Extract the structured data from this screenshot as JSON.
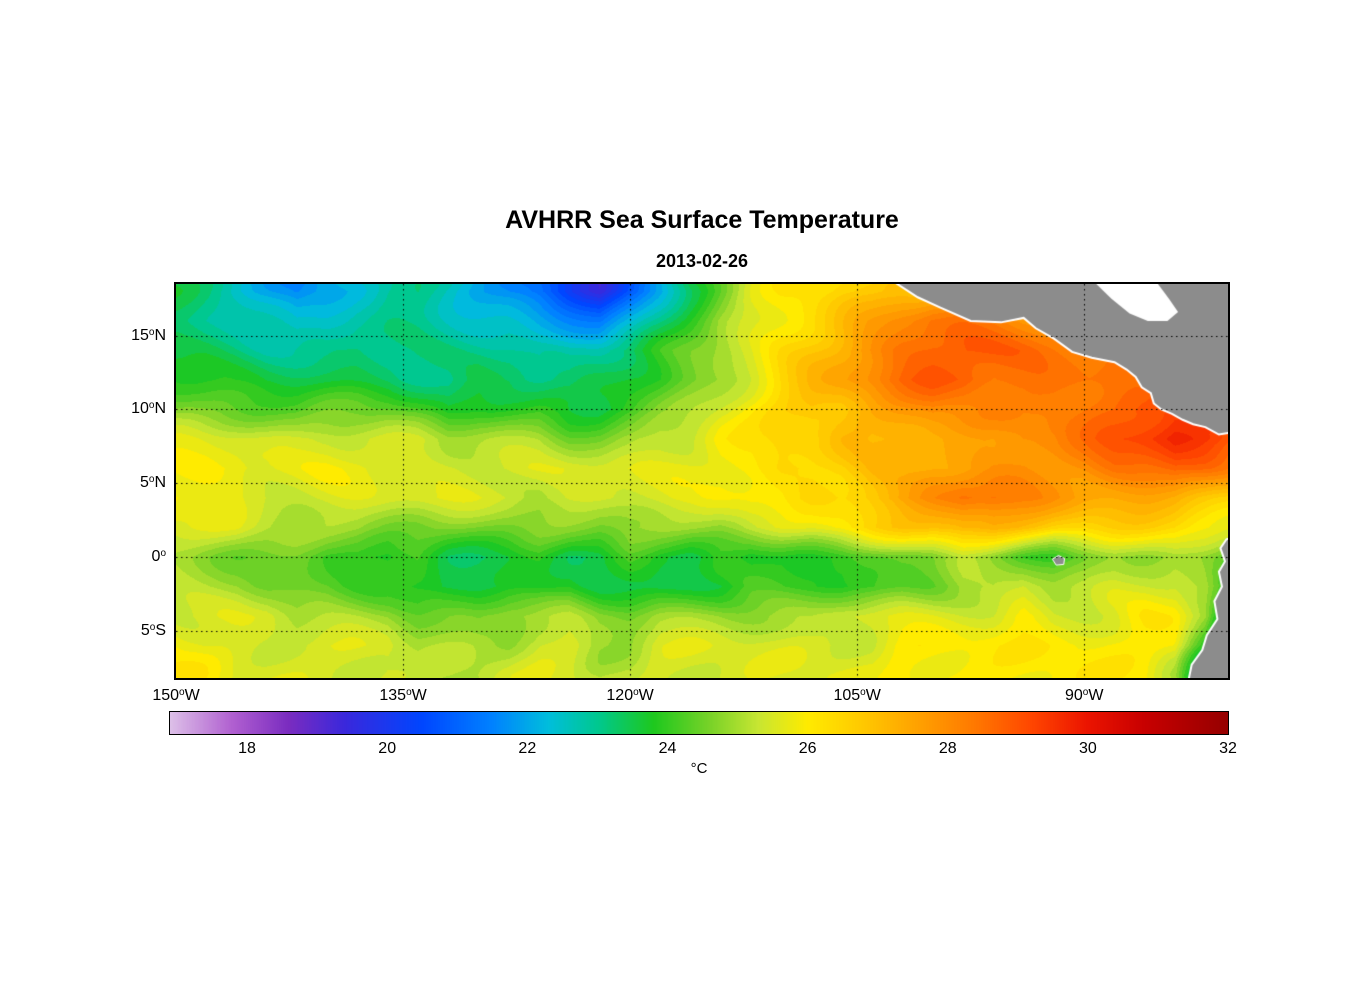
{
  "title": "AVHRR Sea Surface Temperature",
  "subtitle": "2013-02-26",
  "axes": {
    "lon_range": [
      -150,
      -80.5
    ],
    "lat_range": [
      -8.2,
      18.5
    ],
    "xticks": [
      {
        "num": "150",
        "dir": "W",
        "lon": -150
      },
      {
        "num": "135",
        "dir": "W",
        "lon": -135
      },
      {
        "num": "120",
        "dir": "W",
        "lon": -120
      },
      {
        "num": "105",
        "dir": "W",
        "lon": -105
      },
      {
        "num": "90",
        "dir": "W",
        "lon": -90
      }
    ],
    "yticks": [
      {
        "num": "15",
        "dir": "N",
        "lat": 15
      },
      {
        "num": "10",
        "dir": "N",
        "lat": 10
      },
      {
        "num": "5",
        "dir": "N",
        "lat": 5
      },
      {
        "num": "0",
        "dir": "",
        "lat": 0
      },
      {
        "num": "5",
        "dir": "S",
        "lat": -5
      }
    ],
    "grid_lons": [
      -135,
      -120,
      -105,
      -90
    ],
    "grid_lats": [
      15,
      10,
      5,
      0,
      -5
    ]
  },
  "colorbar": {
    "unit": "°C",
    "ticks": [
      18,
      20,
      22,
      24,
      26,
      28,
      30,
      32
    ],
    "range": [
      16.9,
      32
    ],
    "stops": [
      [
        16.9,
        "#ddc0e8"
      ],
      [
        17.8,
        "#b05fd0"
      ],
      [
        18.6,
        "#7a2cc0"
      ],
      [
        19.4,
        "#3a28dc"
      ],
      [
        20.5,
        "#0046ff"
      ],
      [
        21.5,
        "#0082ff"
      ],
      [
        22.3,
        "#00bedc"
      ],
      [
        23.0,
        "#00c890"
      ],
      [
        23.8,
        "#1ec81e"
      ],
      [
        24.6,
        "#78d228"
      ],
      [
        25.3,
        "#c8e632"
      ],
      [
        26.0,
        "#ffeb00"
      ],
      [
        26.8,
        "#ffc800"
      ],
      [
        27.6,
        "#ffa000"
      ],
      [
        28.4,
        "#ff7800"
      ],
      [
        29.2,
        "#ff4600"
      ],
      [
        30.0,
        "#eb1400"
      ],
      [
        30.8,
        "#c80000"
      ],
      [
        32.0,
        "#960000"
      ]
    ]
  },
  "chart_data": {
    "type": "heatmap",
    "title": "AVHRR Sea Surface Temperature",
    "subtitle": "2013-02-26",
    "units": "°C",
    "value_range": [
      16.9,
      32
    ],
    "colorbar_ticks": [
      18,
      20,
      22,
      24,
      26,
      28,
      30,
      32
    ],
    "lon": [
      -150,
      -148,
      -146,
      -144,
      -142,
      -140,
      -138,
      -136,
      -134,
      -132,
      -130,
      -128,
      -126,
      -124,
      -122,
      -120,
      -118,
      -116,
      -114,
      -112,
      -110,
      -108,
      -106,
      -104,
      -102,
      -100,
      -98,
      -96,
      -94,
      -92,
      -90,
      -88,
      -86,
      -84,
      -82,
      -80
    ],
    "lat": [
      18,
      16,
      14,
      12,
      10,
      8,
      6,
      4,
      2,
      0,
      -2,
      -4,
      -6,
      -8
    ],
    "sst": [
      [
        23.5,
        23,
        22.5,
        22,
        21.5,
        22,
        22.5,
        23,
        23,
        22.5,
        22,
        21.5,
        21,
        20.2,
        19.6,
        20.8,
        22,
        23.5,
        24.5,
        25.5,
        26,
        26.2,
        26.5,
        26.6,
        27,
        27.2,
        27.4,
        27.4,
        27.6,
        27.6,
        27.6,
        27.6,
        27.6,
        27.6,
        27.6,
        27.6
      ],
      [
        23.2,
        23,
        23,
        22.6,
        22.2,
        22.4,
        22.8,
        23,
        23,
        22.8,
        22.6,
        22.4,
        22,
        21.6,
        21.2,
        22,
        23,
        24,
        25,
        25.5,
        26,
        26.5,
        27,
        27.5,
        28,
        28.4,
        28.4,
        28.2,
        28,
        28,
        28,
        28,
        28,
        28,
        28,
        28
      ],
      [
        23.5,
        23.4,
        23.2,
        23,
        23,
        23,
        23.2,
        23,
        23,
        23,
        23,
        23,
        22.8,
        22.8,
        23,
        23.4,
        24,
        24.5,
        25,
        25.5,
        26.2,
        26.8,
        27.4,
        28,
        28.5,
        28.8,
        29,
        28.8,
        28.6,
        28.4,
        28.2,
        28.2,
        28.2,
        28,
        28,
        28
      ],
      [
        24,
        23.8,
        23.6,
        23.5,
        23.5,
        23.5,
        23.5,
        23.5,
        23.2,
        23,
        23.4,
        23.4,
        23,
        23,
        23.4,
        23.8,
        24,
        24.5,
        25,
        25.6,
        26.4,
        27,
        27.5,
        28,
        28.6,
        29,
        29,
        28.6,
        28.5,
        28.5,
        28.5,
        28.5,
        28.2,
        28.2,
        28.4,
        28.4
      ],
      [
        24.8,
        24.6,
        24.5,
        24.4,
        24.2,
        24.4,
        24.5,
        24.4,
        24,
        23.6,
        24,
        24,
        24,
        23.6,
        23.6,
        24,
        24.5,
        25,
        25.5,
        26,
        26.5,
        27,
        27,
        27.4,
        27.6,
        28,
        28,
        28,
        28,
        28.4,
        28.5,
        28.6,
        29,
        29.5,
        29.4,
        29
      ],
      [
        25.5,
        25.5,
        25.5,
        25.4,
        25.4,
        25.5,
        25.5,
        25.5,
        25.4,
        25,
        25,
        25,
        25,
        24.6,
        24.6,
        25,
        25.4,
        25.5,
        26,
        26,
        26.4,
        26.5,
        27,
        27,
        27.4,
        27.5,
        27.5,
        27.6,
        28,
        28,
        28.4,
        29,
        29.4,
        29.8,
        29.4,
        29
      ],
      [
        26,
        26,
        25.8,
        25.6,
        25.6,
        25.8,
        25.8,
        25.6,
        25.5,
        25.5,
        25.5,
        25.5,
        25.5,
        25.5,
        25.5,
        25.5,
        25.6,
        25.8,
        26,
        26,
        26.4,
        26.5,
        26.6,
        27,
        27,
        27.4,
        27.5,
        27.8,
        28,
        28,
        28,
        28.4,
        28.5,
        28.8,
        28.5,
        28
      ],
      [
        26,
        25.8,
        25.6,
        25.5,
        25.5,
        25.5,
        25.5,
        25.5,
        25.5,
        25.5,
        25.5,
        25.5,
        25.2,
        25.4,
        25.5,
        25.5,
        25.5,
        25.5,
        25.8,
        26,
        26,
        26.4,
        26.5,
        27,
        27.5,
        28,
        28.5,
        28.4,
        28,
        27.8,
        27.6,
        27.5,
        27.5,
        27.4,
        27,
        26.5
      ],
      [
        25.6,
        25.5,
        25.5,
        25.2,
        25,
        25,
        25,
        24.8,
        24.6,
        24.6,
        24.6,
        24.6,
        24.6,
        24.6,
        24.6,
        25,
        25,
        25,
        25,
        25.4,
        25.5,
        25.5,
        26,
        26.5,
        26.8,
        27,
        27.4,
        27.4,
        27,
        26.6,
        26.5,
        26.5,
        26.5,
        26.4,
        26,
        25.5
      ],
      [
        25,
        24.8,
        24.6,
        24.5,
        24.4,
        24,
        24,
        23.6,
        24,
        23.5,
        23.5,
        23.6,
        24,
        23.5,
        23.5,
        24,
        23.6,
        23.5,
        24,
        23.6,
        24,
        24,
        24,
        24.2,
        24.5,
        24.6,
        25,
        24.6,
        24.2,
        24,
        24.5,
        25,
        25,
        25,
        24.6,
        24
      ],
      [
        25,
        25,
        25,
        24.6,
        24.5,
        24.5,
        24.2,
        24,
        23.6,
        23.5,
        23.5,
        23.6,
        23.6,
        24,
        23.6,
        23.5,
        23.5,
        23.6,
        23.6,
        24,
        24,
        24,
        23.8,
        24,
        24.5,
        24.6,
        25,
        25,
        25.4,
        25,
        25,
        25.4,
        25.5,
        25.5,
        25,
        23.5
      ],
      [
        25.5,
        25.5,
        25.5,
        25.5,
        25,
        25,
        25,
        25,
        24.6,
        24.6,
        24.6,
        25,
        25,
        25,
        24.6,
        24.6,
        25,
        25,
        25,
        25,
        25,
        25,
        25.4,
        25.5,
        25.5,
        25.5,
        25.5,
        25.5,
        26,
        25.5,
        25.5,
        25.5,
        26,
        26,
        25,
        22
      ],
      [
        26,
        25.6,
        25.5,
        25.5,
        25.5,
        25.5,
        25.5,
        25.5,
        25,
        25,
        25,
        25,
        25.5,
        25.5,
        25,
        25,
        25.5,
        25.5,
        25.5,
        25.5,
        25.5,
        25.5,
        25.5,
        25.5,
        26,
        26,
        26,
        26,
        26,
        26,
        26,
        26,
        26,
        26,
        24,
        21
      ],
      [
        26,
        26,
        25.6,
        25.5,
        25.5,
        25.5,
        25.5,
        25.5,
        25.2,
        25.2,
        25.2,
        25.4,
        25.5,
        25.5,
        25.2,
        25.2,
        25.5,
        25.5,
        25.5,
        25.5,
        25.5,
        25.6,
        25.6,
        25.6,
        26,
        26,
        26,
        26,
        26,
        26,
        26,
        26,
        26,
        25,
        22,
        19
      ]
    ]
  },
  "geography": {
    "land_color": "#8c8c8c",
    "coast_color": "#ffffff",
    "land_polygons": {
      "central_america": [
        [
          -102.5,
          18.6
        ],
        [
          -101,
          17.6
        ],
        [
          -99.5,
          16.9
        ],
        [
          -97.5,
          16
        ],
        [
          -95.5,
          15.9
        ],
        [
          -94,
          16.2
        ],
        [
          -93.2,
          15.5
        ],
        [
          -92,
          14.8
        ],
        [
          -90.8,
          13.9
        ],
        [
          -89.5,
          13.5
        ],
        [
          -88,
          13.2
        ],
        [
          -87.2,
          12.7
        ],
        [
          -86.6,
          12.2
        ],
        [
          -86.2,
          11.5
        ],
        [
          -85.6,
          11.1
        ],
        [
          -85.4,
          10.4
        ],
        [
          -84.9,
          10
        ],
        [
          -84.2,
          9.7
        ],
        [
          -83.5,
          9.3
        ],
        [
          -82.8,
          9
        ],
        [
          -82,
          8.8
        ],
        [
          -81.1,
          8.3
        ],
        [
          -80,
          8.5
        ],
        [
          -80,
          18.6
        ]
      ],
      "south_america": [
        [
          -80,
          1.4
        ],
        [
          -80.6,
          1.2
        ],
        [
          -81,
          0.6
        ],
        [
          -80.7,
          -0.3
        ],
        [
          -81.1,
          -1
        ],
        [
          -80.9,
          -2
        ],
        [
          -81.4,
          -3
        ],
        [
          -81.2,
          -4.2
        ],
        [
          -81.9,
          -5.3
        ],
        [
          -82.2,
          -6.3
        ],
        [
          -82.9,
          -7.3
        ],
        [
          -83.1,
          -8.3
        ],
        [
          -80,
          -8.3
        ]
      ],
      "galapagos": [
        [
          -92.1,
          -0.15
        ],
        [
          -91.7,
          0.1
        ],
        [
          -91.3,
          -0.1
        ],
        [
          -91.35,
          -0.5
        ],
        [
          -91.85,
          -0.55
        ]
      ]
    },
    "no_data_polygons": {
      "caribbean": [
        [
          -89.3,
          18.6
        ],
        [
          -88.2,
          17.5
        ],
        [
          -87,
          16.5
        ],
        [
          -85.8,
          16
        ],
        [
          -84.5,
          16
        ],
        [
          -83.8,
          16.6
        ],
        [
          -84.4,
          17.5
        ],
        [
          -85.2,
          18.6
        ]
      ]
    }
  }
}
